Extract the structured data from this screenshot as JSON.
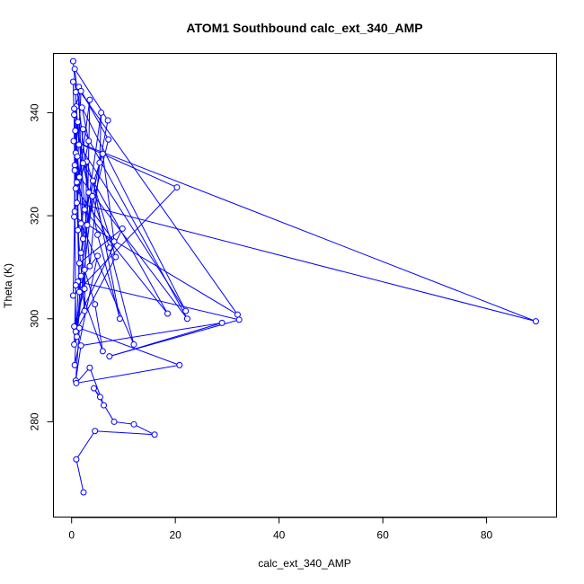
{
  "chart_data": {
    "type": "line",
    "title": "ATOM1 Southbound calc_ext_340_AMP",
    "xlabel": "calc_ext_340_AMP",
    "ylabel": "Theta (K)",
    "xlim": [
      -3.5,
      93.5
    ],
    "ylim": [
      261.5,
      351.5
    ],
    "xticks": [
      0,
      20,
      40,
      60,
      80
    ],
    "yticks": [
      280,
      300,
      320,
      340
    ],
    "grid": false,
    "legend": "none",
    "series_color": "#0000ff",
    "markers": "open-circle",
    "series": [
      {
        "points": [
          [
            0.3,
            350.0
          ],
          [
            0.6,
            348.5
          ],
          [
            0.3,
            346.0
          ],
          [
            1.4,
            345.0
          ],
          [
            0.8,
            344.0
          ],
          [
            1.8,
            344.2
          ],
          [
            3.5,
            342.5
          ],
          [
            0.9,
            341.2
          ],
          [
            0.5,
            340.8
          ],
          [
            2.0,
            341.0
          ],
          [
            0.5,
            339.6
          ],
          [
            5.7,
            340.0
          ],
          [
            7.0,
            338.5
          ],
          [
            1.2,
            338.2
          ],
          [
            0.7,
            336.5
          ],
          [
            2.2,
            336.8
          ],
          [
            3.3,
            334.5
          ],
          [
            0.4,
            334.5
          ],
          [
            7.1,
            334.8
          ],
          [
            1.4,
            333.8
          ],
          [
            0.8,
            332.2
          ],
          [
            6.0,
            332.0
          ],
          [
            1.1,
            331.5
          ],
          [
            2.9,
            330.5
          ],
          [
            0.6,
            329.8
          ],
          [
            2.2,
            330.2
          ],
          [
            5.4,
            330.3
          ],
          [
            0.6,
            328.8
          ],
          [
            1.5,
            327.5
          ],
          [
            20.3,
            325.5
          ],
          [
            1.0,
            326.5
          ],
          [
            4.1,
            326.8
          ],
          [
            0.8,
            325.3
          ],
          [
            3.3,
            324.5
          ],
          [
            4.0,
            323.8
          ],
          [
            1.0,
            322.5
          ],
          [
            0.6,
            320.8
          ],
          [
            2.5,
            321.2
          ],
          [
            0.5,
            319.8
          ],
          [
            1.8,
            318.5
          ],
          [
            3.0,
            318.2
          ],
          [
            9.8,
            317.5
          ],
          [
            1.2,
            317.2
          ],
          [
            5.0,
            316.3
          ],
          [
            2.2,
            315.5
          ],
          [
            8.2,
            315.0
          ],
          [
            7.3,
            313.8
          ],
          [
            1.8,
            312.8
          ],
          [
            5.0,
            312.2
          ],
          [
            8.5,
            312.0
          ],
          [
            1.5,
            310.8
          ],
          [
            3.5,
            310.2
          ],
          [
            2.5,
            309.5
          ],
          [
            1.8,
            308.3
          ],
          [
            1.2,
            307.2
          ],
          [
            0.8,
            306.5
          ],
          [
            2.5,
            305.8
          ],
          [
            1.5,
            305.2
          ],
          [
            0.3,
            304.5
          ],
          [
            4.5,
            302.8
          ],
          [
            2.5,
            301.5
          ],
          [
            18.5,
            301.0
          ],
          [
            22.0,
            301.5
          ],
          [
            32.0,
            300.8
          ],
          [
            22.3,
            300.0
          ],
          [
            32.3,
            299.8
          ],
          [
            9.3,
            300.0
          ],
          [
            89.5,
            299.5
          ],
          [
            29.0,
            299.2
          ],
          [
            0.5,
            298.5
          ],
          [
            1.5,
            298.2
          ],
          [
            0.8,
            297.5
          ],
          [
            1.0,
            296.5
          ],
          [
            0.5,
            295.0
          ],
          [
            12.0,
            295.0
          ],
          [
            1.8,
            294.8
          ],
          [
            6.0,
            293.7
          ],
          [
            7.3,
            292.7
          ],
          [
            20.8,
            291.0
          ],
          [
            0.6,
            291.0
          ],
          [
            3.5,
            290.5
          ],
          [
            0.8,
            288.0
          ],
          [
            0.9,
            287.5
          ],
          [
            4.3,
            286.5
          ],
          [
            5.5,
            284.8
          ],
          [
            6.2,
            283.2
          ],
          [
            8.2,
            280.0
          ],
          [
            12.0,
            279.5
          ],
          [
            16.0,
            277.5
          ],
          [
            4.5,
            278.2
          ],
          [
            0.9,
            272.7
          ],
          [
            2.3,
            266.3
          ]
        ],
        "order": [
          0,
          4,
          30,
          5,
          8,
          33,
          1,
          12,
          40,
          6,
          28,
          14,
          57,
          7,
          19,
          62,
          9,
          16,
          36,
          10,
          22,
          44,
          3,
          18,
          47,
          11,
          26,
          51,
          13,
          27,
          64,
          15,
          35,
          67,
          17,
          29,
          58,
          20,
          38,
          63,
          2,
          32,
          45,
          21,
          42,
          60,
          23,
          49,
          71,
          24,
          37,
          61,
          25,
          43,
          66,
          31,
          53,
          72,
          34,
          46,
          74,
          39,
          56,
          69,
          41,
          50,
          79,
          48,
          55,
          73,
          52,
          59,
          76,
          54,
          65,
          77,
          68,
          75,
          81,
          70,
          78,
          82,
          80,
          85,
          84,
          83,
          86,
          87,
          88,
          89,
          90,
          91
        ]
      }
    ]
  }
}
